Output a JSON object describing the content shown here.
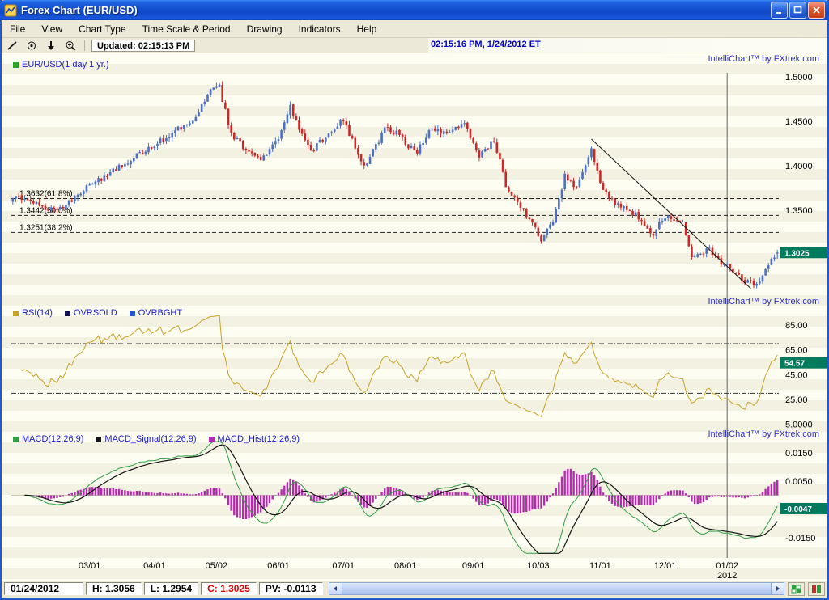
{
  "window": {
    "title": "Forex Chart (EUR/USD)"
  },
  "menu": {
    "items": [
      "File",
      "View",
      "Chart Type",
      "Time Scale & Period",
      "Drawing",
      "Indicators",
      "Help"
    ]
  },
  "toolbar": {
    "updated": "Updated: 02:15:13 PM",
    "timestamp": "02:15:16 PM, 1/24/2012 ET"
  },
  "status_bar": {
    "date": "01/24/2012",
    "high": "H: 1.3056",
    "low": "L: 1.2954",
    "close": "C: 1.3025",
    "pv": "PV: -0.0113"
  },
  "chart_data": {
    "type": "candlestick",
    "symbol": "EUR/USD",
    "title": "EUR/USD(1 day  1 yr.)",
    "watermark": "IntelliChart™ by FXtrek.com",
    "num_days": 260,
    "close_anchors": [
      [
        0,
        1.364
      ],
      [
        8,
        1.357
      ],
      [
        15,
        1.349
      ],
      [
        26,
        1.377
      ],
      [
        36,
        1.399
      ],
      [
        48,
        1.423
      ],
      [
        57,
        1.444
      ],
      [
        62,
        1.455
      ],
      [
        66,
        1.482
      ],
      [
        70,
        1.488
      ],
      [
        74,
        1.435
      ],
      [
        79,
        1.418
      ],
      [
        84,
        1.405
      ],
      [
        90,
        1.432
      ],
      [
        94,
        1.466
      ],
      [
        101,
        1.414
      ],
      [
        107,
        1.438
      ],
      [
        112,
        1.452
      ],
      [
        119,
        1.397
      ],
      [
        126,
        1.442
      ],
      [
        130,
        1.437
      ],
      [
        133,
        1.425
      ],
      [
        137,
        1.417
      ],
      [
        142,
        1.442
      ],
      [
        148,
        1.436
      ],
      [
        153,
        1.45
      ],
      [
        158,
        1.41
      ],
      [
        163,
        1.429
      ],
      [
        167,
        1.379
      ],
      [
        173,
        1.35
      ],
      [
        179,
        1.318
      ],
      [
        183,
        1.338
      ],
      [
        187,
        1.388
      ],
      [
        191,
        1.376
      ],
      [
        196,
        1.419
      ],
      [
        200,
        1.37
      ],
      [
        206,
        1.354
      ],
      [
        211,
        1.345
      ],
      [
        217,
        1.324
      ],
      [
        221,
        1.344
      ],
      [
        227,
        1.337
      ],
      [
        230,
        1.298
      ],
      [
        236,
        1.305
      ],
      [
        240,
        1.292
      ],
      [
        244,
        1.28
      ],
      [
        248,
        1.271
      ],
      [
        252,
        1.264
      ],
      [
        255,
        1.286
      ],
      [
        257,
        1.293
      ],
      [
        259,
        1.3025
      ]
    ],
    "last": {
      "open": 1.3012,
      "high": 1.3056,
      "low": 1.2954,
      "close": 1.3025
    },
    "price_ticks": [
      {
        "v": 1.5,
        "label": "1.5000"
      },
      {
        "v": 1.45,
        "label": "1.4500"
      },
      {
        "v": 1.4,
        "label": "1.4000"
      },
      {
        "v": 1.35,
        "label": "1.3500"
      }
    ],
    "price_marker": {
      "v": 1.3025,
      "label": "1.3025"
    },
    "fib_levels": [
      {
        "v": 1.3632,
        "label": "1.3632(61.8%)"
      },
      {
        "v": 1.3442,
        "label": "1.3442(50.0%)"
      },
      {
        "v": 1.3251,
        "label": "1.3251(38.2%)"
      }
    ],
    "trendline": {
      "d1": 196,
      "p1": 1.43,
      "d2": 250,
      "p2": 1.262
    },
    "vline_day": 242,
    "month_ticks": [
      {
        "day": 26,
        "label": "03/01"
      },
      {
        "day": 48,
        "label": "04/01"
      },
      {
        "day": 69,
        "label": "05/02"
      },
      {
        "day": 90,
        "label": "06/01"
      },
      {
        "day": 112,
        "label": "07/01"
      },
      {
        "day": 133,
        "label": "08/01"
      },
      {
        "day": 156,
        "label": "09/01"
      },
      {
        "day": 178,
        "label": "10/03"
      },
      {
        "day": 199,
        "label": "11/01"
      },
      {
        "day": 221,
        "label": "12/01"
      },
      {
        "day": 242,
        "label": "01/02",
        "sub": "2012"
      }
    ],
    "rsi": {
      "period": 14,
      "legend": [
        "RSI(14)",
        "OVRSOLD",
        "OVRBGHT"
      ],
      "ticks": [
        {
          "v": 85,
          "label": "85.00"
        },
        {
          "v": 65,
          "label": "65.00"
        },
        {
          "v": 45,
          "label": "45.00"
        },
        {
          "v": 25,
          "label": "25.00"
        },
        {
          "v": 5,
          "label": "5.0000"
        }
      ],
      "bands": [
        70,
        30
      ],
      "marker": {
        "v": 54.57,
        "label": "54.57"
      }
    },
    "macd": {
      "fast": 12,
      "slow": 26,
      "signal_period": 9,
      "legend": [
        "MACD(12,26,9)",
        "MACD_Signal(12,26,9)",
        "MACD_Hist(12,26,9)"
      ],
      "ticks": [
        {
          "v": 0.015,
          "label": "0.0150"
        },
        {
          "v": 0.005,
          "label": "0.0050"
        },
        {
          "v": -0.015,
          "label": "-0.0150"
        }
      ],
      "marker": {
        "v": -0.0047,
        "label": "-0.0047"
      }
    },
    "colors": {
      "up": "#4a6fc4",
      "down": "#cc2727",
      "price": "#27a427",
      "rsi": "#c9a227",
      "ovrsold": "#10104a",
      "ovrbght": "#2255cc",
      "macd": "#2f9e41",
      "signal": "#141414",
      "hist": "#b829b2",
      "marker_bg": "#00795c",
      "marker_text": "#ffffff",
      "fib": "#222222",
      "trend": "#111111",
      "vline": "#666666",
      "watermark": "#2e2ecb",
      "axis_text": "#000000"
    }
  }
}
